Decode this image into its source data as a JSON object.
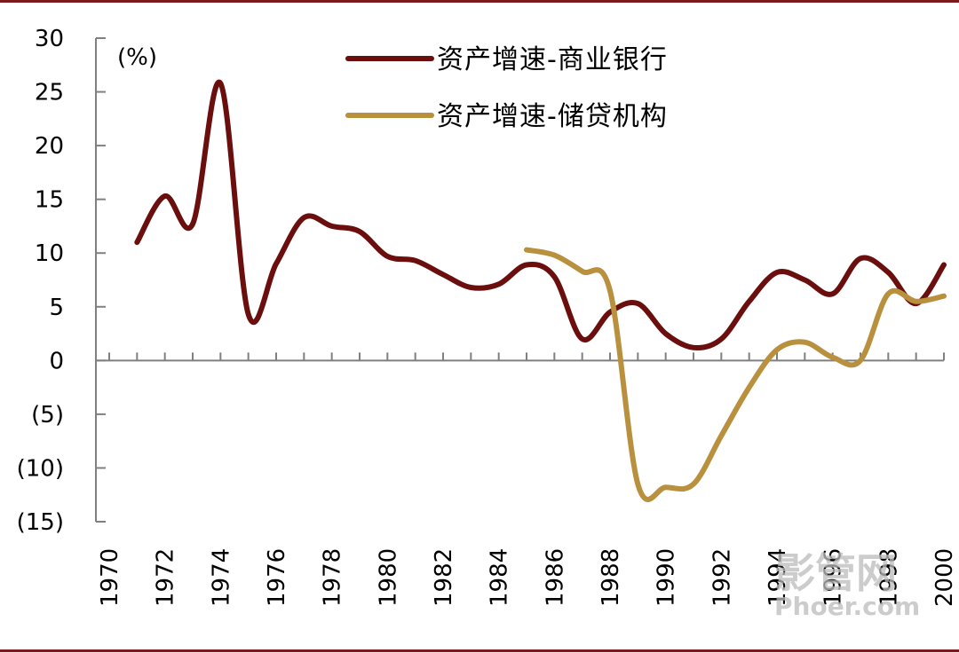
{
  "chart_data": {
    "type": "line",
    "unit_label": "(%)",
    "ylim": [
      -15,
      30
    ],
    "y_ticks": [
      30,
      25,
      20,
      15,
      10,
      5,
      0,
      -5,
      -10,
      -15
    ],
    "y_tick_labels": [
      "30",
      "25",
      "20",
      "15",
      "10",
      "5",
      "0",
      "(5)",
      "(10)",
      "(15)"
    ],
    "x_range": [
      1970,
      2000
    ],
    "x_ticks": [
      1970,
      1972,
      1974,
      1976,
      1978,
      1980,
      1982,
      1984,
      1986,
      1988,
      1990,
      1992,
      1994,
      1996,
      1998,
      2000
    ],
    "x_tick_labels": [
      "1970",
      "1972",
      "1974",
      "1976",
      "1978",
      "1980",
      "1982",
      "1984",
      "1986",
      "1988",
      "1990",
      "1992",
      "1994",
      "1996",
      "1998",
      "2000"
    ],
    "legend_position": "top-right",
    "grid": false,
    "series": [
      {
        "name": "资产增速-商业银行",
        "color": "#6b0e0e",
        "x": [
          1971,
          1972,
          1973,
          1974,
          1975,
          1976,
          1977,
          1978,
          1979,
          1980,
          1981,
          1982,
          1983,
          1984,
          1985,
          1986,
          1987,
          1988,
          1989,
          1990,
          1991,
          1992,
          1993,
          1994,
          1995,
          1996,
          1997,
          1998,
          1999,
          2000
        ],
        "values": [
          11.0,
          15.3,
          12.7,
          25.8,
          4.3,
          9.0,
          13.3,
          12.5,
          12.0,
          9.7,
          9.3,
          8.0,
          6.8,
          7.1,
          8.9,
          7.8,
          2.0,
          4.5,
          5.3,
          2.5,
          1.2,
          2.0,
          5.5,
          8.2,
          7.5,
          6.2,
          9.5,
          8.2,
          5.3,
          8.9
        ]
      },
      {
        "name": "资产增速-储贷机构",
        "color": "#b8903e",
        "x": [
          1985,
          1986,
          1987,
          1988,
          1989,
          1990,
          1991,
          1992,
          1993,
          1994,
          1995,
          1996,
          1997,
          1998,
          1999,
          2000
        ],
        "values": [
          10.3,
          9.8,
          8.3,
          6.5,
          -11.5,
          -11.8,
          -11.5,
          -7.0,
          -2.5,
          1.0,
          1.7,
          0.3,
          0.0,
          6.2,
          5.5,
          6.0
        ]
      }
    ]
  },
  "watermark": {
    "line1": "影管网",
    "line2": "Phoer.com"
  }
}
